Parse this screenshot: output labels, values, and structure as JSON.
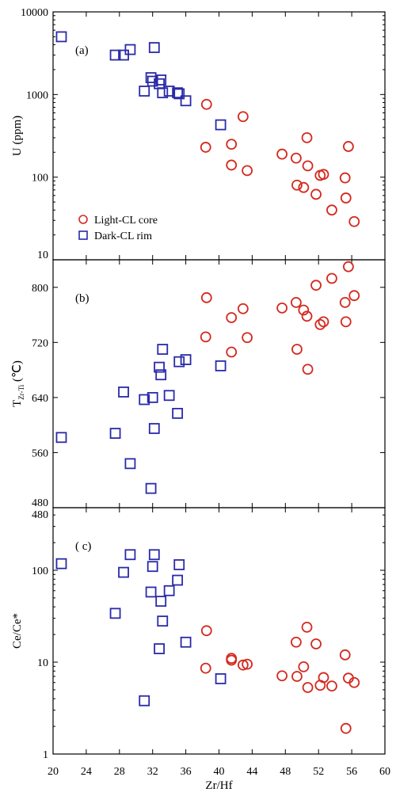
{
  "chart_data": [
    {
      "panel": "(a)",
      "type": "scatter",
      "scale": "log",
      "xlabel": "Zr/Hf",
      "ylabel": "U (ppm)",
      "xlim": [
        20,
        60
      ],
      "ylim": [
        10,
        10000
      ],
      "yticks": [
        "10",
        "100",
        "1000",
        "10000"
      ],
      "legend": {
        "placement": "bottom-left",
        "entries": [
          "Light-CL core",
          "Dark-CL rim"
        ]
      },
      "series": [
        {
          "name": "Light-CL core",
          "marker": "circle",
          "color": "#d42a20",
          "points": [
            [
              38.5,
              760
            ],
            [
              38.4,
              230
            ],
            [
              41.5,
              250
            ],
            [
              41.5,
              140
            ],
            [
              42.9,
              540
            ],
            [
              43.4,
              120
            ],
            [
              47.6,
              190
            ],
            [
              49.3,
              170
            ],
            [
              49.4,
              80
            ],
            [
              50.2,
              75
            ],
            [
              50.6,
              300
            ],
            [
              50.7,
              137
            ],
            [
              51.7,
              62
            ],
            [
              52.2,
              105
            ],
            [
              52.6,
              108
            ],
            [
              53.6,
              40
            ],
            [
              55.2,
              98
            ],
            [
              55.3,
              56
            ],
            [
              55.6,
              235
            ],
            [
              56.3,
              29
            ]
          ]
        },
        {
          "name": "Dark-CL rim",
          "marker": "square",
          "color": "#2a2aa8",
          "points": [
            [
              21,
              5000
            ],
            [
              27.5,
              3000
            ],
            [
              28.5,
              3000
            ],
            [
              29.3,
              3500
            ],
            [
              31,
              1100
            ],
            [
              31.8,
              1600
            ],
            [
              32.0,
              1450
            ],
            [
              32.2,
              3700
            ],
            [
              32.8,
              1350
            ],
            [
              33.0,
              1500
            ],
            [
              33.2,
              1050
            ],
            [
              34,
              1100
            ],
            [
              35.0,
              1050
            ],
            [
              35.2,
              1020
            ],
            [
              36,
              840
            ],
            [
              40.2,
              430
            ]
          ]
        }
      ]
    },
    {
      "panel": "(b)",
      "type": "scatter",
      "scale": "linear",
      "xlabel": "Zr/Hf",
      "ylabel_main": "T",
      "ylabel_sub": "Zr-Ti",
      "ylabel_unit": " (℃)",
      "xlim": [
        20,
        60
      ],
      "ylim": [
        480,
        840
      ],
      "yticks": [
        "480",
        "560",
        "640",
        "720",
        "800"
      ],
      "series": [
        {
          "name": "Light-CL core",
          "marker": "circle",
          "color": "#d42a20",
          "points": [
            [
              38.5,
              785
            ],
            [
              38.4,
              728
            ],
            [
              41.5,
              756
            ],
            [
              41.5,
              706
            ],
            [
              42.9,
              769
            ],
            [
              43.4,
              727
            ],
            [
              47.6,
              770
            ],
            [
              49.3,
              778
            ],
            [
              49.4,
              710
            ],
            [
              50.2,
              767
            ],
            [
              50.6,
              758
            ],
            [
              50.7,
              681
            ],
            [
              51.7,
              803
            ],
            [
              52.2,
              746
            ],
            [
              52.6,
              750
            ],
            [
              53.6,
              813
            ],
            [
              55.2,
              778
            ],
            [
              55.3,
              750
            ],
            [
              55.6,
              830
            ],
            [
              56.3,
              788
            ]
          ]
        },
        {
          "name": "Dark-CL rim",
          "marker": "square",
          "color": "#2a2aa8",
          "points": [
            [
              21,
              582
            ],
            [
              27.5,
              588
            ],
            [
              28.5,
              648
            ],
            [
              29.3,
              544
            ],
            [
              31,
              637
            ],
            [
              31.8,
              508
            ],
            [
              32.0,
              640
            ],
            [
              32.2,
              595
            ],
            [
              32.8,
              684
            ],
            [
              33.0,
              673
            ],
            [
              33.2,
              710
            ],
            [
              34,
              643
            ],
            [
              35.0,
              617
            ],
            [
              35.2,
              692
            ],
            [
              36,
              695
            ],
            [
              40.2,
              686
            ]
          ]
        }
      ]
    },
    {
      "panel": "( c)",
      "type": "scatter",
      "scale": "log",
      "xlabel": "Zr/Hf",
      "ylabel": "Ce/Ce*",
      "xlim": [
        20,
        60
      ],
      "ylim": [
        1,
        480
      ],
      "yticks": [
        "1",
        "10",
        "100"
      ],
      "ytick_top": "480",
      "series": [
        {
          "name": "Light-CL core",
          "marker": "circle",
          "color": "#d42a20",
          "points": [
            [
              38.5,
              22
            ],
            [
              38.4,
              8.6
            ],
            [
              41.5,
              11
            ],
            [
              41.5,
              10.5
            ],
            [
              42.9,
              9.3
            ],
            [
              43.4,
              9.5
            ],
            [
              47.6,
              7.1
            ],
            [
              49.3,
              16.5
            ],
            [
              49.4,
              7.0
            ],
            [
              50.2,
              8.9
            ],
            [
              50.6,
              24
            ],
            [
              50.7,
              5.3
            ],
            [
              51.7,
              15.8
            ],
            [
              52.2,
              5.6
            ],
            [
              52.6,
              6.8
            ],
            [
              53.6,
              5.5
            ],
            [
              55.2,
              12
            ],
            [
              55.3,
              1.9
            ],
            [
              55.6,
              6.7
            ],
            [
              56.3,
              6.0
            ]
          ]
        },
        {
          "name": "Dark-CL rim",
          "marker": "square",
          "color": "#2a2aa8",
          "points": [
            [
              21,
              118
            ],
            [
              27.5,
              34
            ],
            [
              28.5,
              95
            ],
            [
              29.3,
              148
            ],
            [
              31,
              3.8
            ],
            [
              31.8,
              58
            ],
            [
              32.0,
              110
            ],
            [
              32.2,
              148
            ],
            [
              32.8,
              14
            ],
            [
              33.0,
              46
            ],
            [
              33.2,
              28
            ],
            [
              34,
              60
            ],
            [
              35.0,
              78
            ],
            [
              35.2,
              115
            ],
            [
              36,
              16.5
            ],
            [
              40.2,
              6.6
            ]
          ]
        }
      ]
    }
  ],
  "xaxis": {
    "title": "Zr/Hf",
    "ticks": [
      "20",
      "24",
      "28",
      "32",
      "36",
      "40",
      "44",
      "48",
      "52",
      "56",
      "60"
    ]
  }
}
